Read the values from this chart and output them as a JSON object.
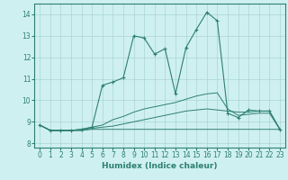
{
  "xlabel": "Humidex (Indice chaleur)",
  "xlim": [
    -0.5,
    23.5
  ],
  "ylim": [
    7.8,
    14.5
  ],
  "yticks": [
    8,
    9,
    10,
    11,
    12,
    13,
    14
  ],
  "xticks": [
    0,
    1,
    2,
    3,
    4,
    5,
    6,
    7,
    8,
    9,
    10,
    11,
    12,
    13,
    14,
    15,
    16,
    17,
    18,
    19,
    20,
    21,
    22,
    23
  ],
  "bg_color": "#cff0f0",
  "line_color": "#2d7f72",
  "grid_color": "#aad4d4",
  "line1_y": [
    8.85,
    8.6,
    8.6,
    8.6,
    8.6,
    8.65,
    8.65,
    8.65,
    8.65,
    8.65,
    8.65,
    8.65,
    8.65,
    8.65,
    8.65,
    8.65,
    8.65,
    8.65,
    8.65,
    8.65,
    8.65,
    8.65,
    8.65,
    8.65
  ],
  "line2_y": [
    8.85,
    8.6,
    8.6,
    8.6,
    8.6,
    8.7,
    8.75,
    8.8,
    8.9,
    9.0,
    9.1,
    9.2,
    9.3,
    9.4,
    9.5,
    9.55,
    9.6,
    9.55,
    9.5,
    9.45,
    9.45,
    9.5,
    9.5,
    8.65
  ],
  "line3_y": [
    8.85,
    8.6,
    8.6,
    8.6,
    8.65,
    8.75,
    8.85,
    9.1,
    9.25,
    9.45,
    9.6,
    9.7,
    9.8,
    9.9,
    10.05,
    10.2,
    10.3,
    10.35,
    9.6,
    9.3,
    9.35,
    9.4,
    9.4,
    8.65
  ],
  "main_y": [
    8.85,
    8.6,
    8.6,
    8.6,
    8.65,
    8.75,
    10.7,
    10.85,
    11.05,
    13.0,
    12.9,
    12.15,
    12.4,
    10.3,
    12.45,
    13.3,
    14.1,
    13.7,
    9.4,
    9.2,
    9.55,
    9.5,
    9.5,
    8.65
  ]
}
